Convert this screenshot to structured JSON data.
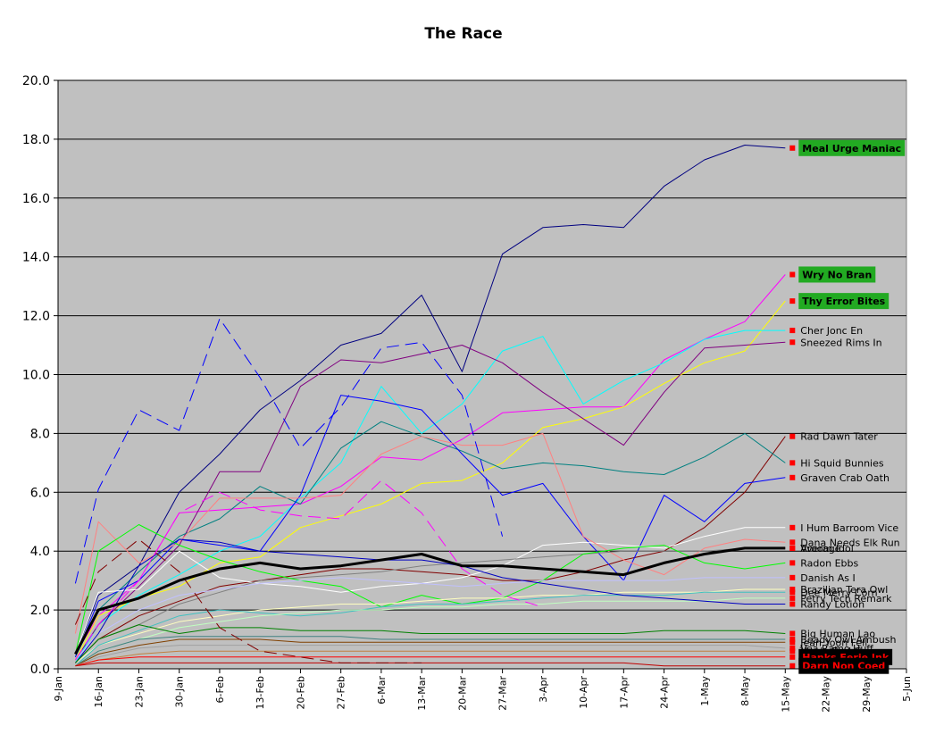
{
  "chart_data": {
    "type": "line",
    "title": "The Race",
    "ylim": [
      0,
      20
    ],
    "y_ticks": [
      "0.0",
      "2.0",
      "4.0",
      "6.0",
      "8.0",
      "10.0",
      "12.0",
      "14.0",
      "16.0",
      "18.0",
      "20.0"
    ],
    "x_ticks": [
      "9-Jan",
      "16-Jan",
      "23-Jan",
      "30-Jan",
      "6-Feb",
      "13-Feb",
      "20-Feb",
      "27-Feb",
      "6-Mar",
      "13-Mar",
      "20-Mar",
      "27-Mar",
      "3-Apr",
      "10-Apr",
      "17-Apr",
      "24-Apr",
      "1-May",
      "8-May",
      "15-May",
      "22-May",
      "29-May",
      "5-Jun"
    ],
    "x": [
      "12-Jan",
      "16-Jan",
      "23-Jan",
      "30-Jan",
      "6-Feb",
      "13-Feb",
      "20-Feb",
      "27-Feb",
      "6-Mar",
      "13-Mar",
      "20-Mar",
      "27-Mar",
      "3-Apr",
      "10-Apr",
      "17-Apr",
      "24-Apr",
      "1-May",
      "8-May",
      "15-May"
    ],
    "grid": true,
    "plot_background": "#c0c0c0",
    "series": [
      {
        "name": "Meal Urge Maniac",
        "color": "#000080",
        "style": "solid",
        "highlight": "green",
        "values": [
          0.5,
          2.5,
          3.5,
          6.0,
          7.3,
          8.8,
          9.8,
          11.0,
          11.4,
          12.7,
          10.1,
          14.1,
          15.0,
          15.1,
          15.0,
          16.4,
          17.3,
          17.8,
          17.7
        ]
      },
      {
        "name": "Wry No Bran",
        "color": "#ff00ff",
        "style": "solid",
        "highlight": "green",
        "values": [
          0.5,
          1.8,
          3.0,
          5.3,
          5.4,
          5.5,
          5.6,
          6.2,
          7.2,
          7.1,
          7.8,
          8.7,
          8.8,
          8.9,
          8.9,
          10.5,
          11.2,
          11.8,
          13.4
        ]
      },
      {
        "name": "Thy Error Bites",
        "color": "#ffff00",
        "style": "solid",
        "highlight": "green",
        "values": [
          0.3,
          1.8,
          2.4,
          2.8,
          3.6,
          3.8,
          4.8,
          5.2,
          5.6,
          6.3,
          6.4,
          7.0,
          8.2,
          8.5,
          8.9,
          9.7,
          10.4,
          10.8,
          12.5
        ]
      },
      {
        "name": "Cher Jonc En",
        "color": "#00ffff",
        "style": "solid",
        "values": [
          0.2,
          1.5,
          2.5,
          3.2,
          4.0,
          4.5,
          5.8,
          7.0,
          9.6,
          8.0,
          9.0,
          10.8,
          11.3,
          9.0,
          9.8,
          10.4,
          11.2,
          11.5,
          11.5
        ]
      },
      {
        "name": "Sneezed Rims In",
        "color": "#800080",
        "style": "solid",
        "values": [
          0.3,
          1.5,
          2.8,
          4.2,
          6.7,
          6.7,
          9.6,
          10.5,
          10.4,
          10.7,
          11.0,
          10.4,
          9.4,
          8.5,
          7.6,
          9.4,
          10.9,
          11.0,
          11.1
        ]
      },
      {
        "name": "Rad Dawn Tater",
        "color": "#800000",
        "style": "solid",
        "values": [
          0.2,
          1.0,
          1.8,
          2.3,
          2.8,
          3.0,
          3.2,
          3.4,
          3.4,
          3.3,
          3.2,
          3.0,
          3.0,
          3.3,
          3.7,
          4.0,
          4.8,
          6.0,
          7.9
        ]
      },
      {
        "name": "Hi Squid Bunnies",
        "color": "#008080",
        "style": "solid",
        "values": [
          0.4,
          2.0,
          3.3,
          4.5,
          5.1,
          6.2,
          5.6,
          7.5,
          8.4,
          7.9,
          7.4,
          6.8,
          7.0,
          6.9,
          6.7,
          6.6,
          7.2,
          8.0,
          7.0
        ]
      },
      {
        "name": "Graven Crab Oath",
        "color": "#0000ff",
        "style": "solid",
        "values": [
          0.4,
          2.3,
          3.0,
          4.4,
          4.2,
          4.0,
          5.9,
          9.3,
          9.1,
          8.8,
          7.3,
          5.9,
          6.3,
          4.5,
          3.0,
          5.9,
          5.0,
          6.3,
          6.5
        ]
      },
      {
        "name": "I Hum Barroom Vice",
        "color": "#ffffff",
        "style": "solid",
        "values": [
          0.5,
          2.6,
          2.7,
          4.0,
          3.1,
          2.9,
          2.8,
          2.6,
          2.8,
          2.9,
          3.1,
          3.5,
          4.2,
          4.3,
          4.2,
          4.1,
          4.5,
          4.8,
          4.8
        ]
      },
      {
        "name": "Dana Needs Elk Run",
        "color": "#ff8080",
        "style": "solid",
        "values": [
          1.2,
          5.0,
          3.6,
          4.3,
          5.8,
          5.8,
          5.8,
          5.9,
          7.3,
          7.9,
          7.6,
          7.6,
          8.0,
          4.5,
          3.7,
          3.2,
          4.1,
          4.4,
          4.3
        ]
      },
      {
        "name": "Average",
        "color": "#000000",
        "style": "solid",
        "bold": true,
        "values": [
          0.5,
          2.0,
          2.4,
          3.0,
          3.4,
          3.6,
          3.4,
          3.5,
          3.7,
          3.9,
          3.5,
          3.5,
          3.4,
          3.3,
          3.2,
          3.6,
          3.9,
          4.1,
          4.1
        ]
      },
      {
        "name": "Vroom Idol",
        "color": "#808080",
        "style": "solid",
        "values": [
          0.2,
          1.0,
          1.5,
          2.2,
          2.6,
          3.0,
          3.1,
          3.2,
          3.3,
          3.5,
          3.6,
          3.7,
          3.8,
          3.9,
          4.0,
          4.0,
          4.0,
          4.1,
          4.1
        ]
      },
      {
        "name": "Radon Ebbs",
        "color": "#00ff00",
        "style": "solid",
        "values": [
          0.5,
          4.0,
          4.9,
          4.2,
          3.7,
          3.3,
          3.0,
          2.8,
          2.1,
          2.5,
          2.2,
          2.4,
          3.0,
          3.9,
          4.1,
          4.2,
          3.6,
          3.4,
          3.6
        ]
      },
      {
        "name": "Danish As I",
        "color": "#c0c0ff",
        "style": "solid",
        "values": [
          0.3,
          1.2,
          2.0,
          2.5,
          2.7,
          2.9,
          3.0,
          3.1,
          3.0,
          2.9,
          2.8,
          2.9,
          3.0,
          3.0,
          3.0,
          3.0,
          3.1,
          3.1,
          3.1
        ]
      },
      {
        "name": "Brazilian Tera Owl",
        "color": "#ffffc0",
        "style": "solid",
        "values": [
          0.2,
          0.8,
          1.2,
          1.6,
          1.8,
          2.0,
          2.1,
          2.2,
          2.2,
          2.3,
          2.4,
          2.4,
          2.5,
          2.5,
          2.6,
          2.6,
          2.6,
          2.7,
          2.7
        ]
      },
      {
        "name": "Dee Merry Corn",
        "color": "#40c0c0",
        "style": "solid",
        "values": [
          0.1,
          0.8,
          1.3,
          1.8,
          2.0,
          1.9,
          1.8,
          1.9,
          2.1,
          2.2,
          2.2,
          2.3,
          2.4,
          2.5,
          2.5,
          2.5,
          2.6,
          2.6,
          2.6
        ]
      },
      {
        "name": "Petry Tech Remark",
        "color": "#c0ffc0",
        "style": "solid",
        "values": [
          0.1,
          0.6,
          1.0,
          1.4,
          1.6,
          1.8,
          1.9,
          2.0,
          2.0,
          2.1,
          2.1,
          2.2,
          2.2,
          2.3,
          2.3,
          2.3,
          2.3,
          2.4,
          2.4
        ]
      },
      {
        "name": "Randy Lotion",
        "color": "#0000c0",
        "style": "solid",
        "values": [
          0.2,
          1.2,
          3.5,
          4.4,
          4.3,
          4.0,
          3.9,
          3.8,
          3.7,
          3.7,
          3.5,
          3.1,
          2.9,
          2.7,
          2.5,
          2.4,
          2.3,
          2.2,
          2.2
        ]
      },
      {
        "name": "Big Human Lao",
        "color": "#008000",
        "style": "solid",
        "values": [
          0.2,
          1.0,
          1.5,
          1.2,
          1.4,
          1.4,
          1.3,
          1.3,
          1.3,
          1.2,
          1.2,
          1.2,
          1.2,
          1.2,
          1.2,
          1.3,
          1.3,
          1.3,
          1.2
        ]
      },
      {
        "name": "Beady Owl Ambush",
        "color": "#408080",
        "style": "solid",
        "values": [
          0.1,
          0.6,
          1.0,
          1.1,
          1.1,
          1.1,
          1.1,
          1.1,
          1.0,
          1.0,
          1.0,
          1.0,
          1.0,
          1.0,
          1.0,
          1.0,
          1.0,
          1.0,
          1.0
        ]
      },
      {
        "name": "Jean Yoon Fell",
        "color": "#804000",
        "style": "solid",
        "values": [
          0.1,
          0.5,
          0.8,
          1.0,
          1.0,
          1.0,
          0.9,
          0.9,
          0.9,
          0.9,
          0.9,
          0.9,
          0.9,
          0.9,
          0.9,
          0.9,
          0.9,
          0.9,
          0.9
        ]
      },
      {
        "name": "Vea Ramo Huff",
        "color": "#a0a0a0",
        "style": "solid",
        "values": [
          0.1,
          0.4,
          0.7,
          0.8,
          0.8,
          0.8,
          0.8,
          0.8,
          0.8,
          0.8,
          0.8,
          0.8,
          0.8,
          0.8,
          0.8,
          0.8,
          0.8,
          0.8,
          0.7
        ]
      },
      {
        "name": "Hanlo Bud Gem",
        "color": "#c08040",
        "style": "solid",
        "values": [
          0.1,
          0.3,
          0.5,
          0.6,
          0.6,
          0.6,
          0.6,
          0.6,
          0.6,
          0.6,
          0.6,
          0.6,
          0.6,
          0.6,
          0.6,
          0.6,
          0.6,
          0.6,
          0.6
        ]
      },
      {
        "name": "Hanks Eerie Ink",
        "color": "#ff0000",
        "style": "solid",
        "highlight": "black",
        "values": [
          0.1,
          0.3,
          0.4,
          0.4,
          0.4,
          0.4,
          0.4,
          0.4,
          0.4,
          0.4,
          0.4,
          0.4,
          0.4,
          0.4,
          0.4,
          0.4,
          0.4,
          0.4,
          0.4
        ]
      },
      {
        "name": "Darn Non Coed",
        "color": "#c00000",
        "style": "solid",
        "highlight": "black",
        "values": [
          0.1,
          0.2,
          0.2,
          0.2,
          0.2,
          0.2,
          0.2,
          0.2,
          0.2,
          0.2,
          0.2,
          0.2,
          0.2,
          0.2,
          0.2,
          0.1,
          0.1,
          0.1,
          0.1
        ]
      },
      {
        "name": "",
        "color": "#0000ff",
        "style": "dash",
        "values": [
          2.9,
          6.1,
          8.8,
          8.1,
          11.9,
          9.9,
          7.5,
          8.9,
          10.9,
          11.1,
          9.3,
          4.5,
          null,
          null,
          null,
          null,
          null,
          null,
          null
        ]
      },
      {
        "name": "",
        "color": "#ff00ff",
        "style": "dash",
        "values": [
          0.3,
          1.5,
          3.0,
          5.3,
          6.0,
          5.4,
          5.2,
          5.1,
          6.4,
          5.3,
          3.4,
          2.5,
          2.1,
          null,
          null,
          null,
          null,
          null,
          null
        ]
      },
      {
        "name": "",
        "color": "#800000",
        "style": "dash",
        "values": [
          1.5,
          3.3,
          4.4,
          3.3,
          1.4,
          0.6,
          0.4,
          0.2,
          0.2,
          0.2,
          null,
          null,
          null,
          null,
          null,
          null,
          null,
          null,
          null
        ]
      }
    ]
  }
}
